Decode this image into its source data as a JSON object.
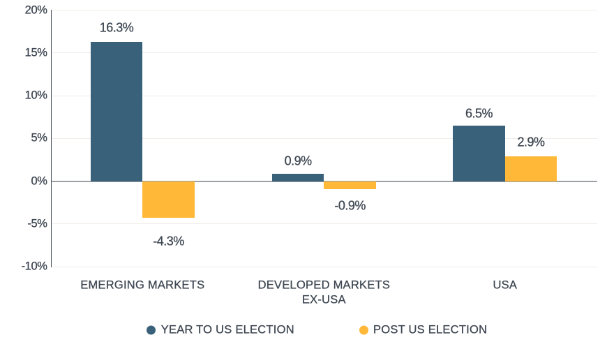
{
  "chart_data": {
    "type": "bar",
    "title": "",
    "categories": [
      "EMERGING MARKETS",
      "DEVELOPED MARKETS\nEX-USA",
      "USA"
    ],
    "series": [
      {
        "name": "YEAR TO US ELECTION",
        "color": "#3a617a",
        "values": [
          16.3,
          0.9,
          6.5
        ],
        "data_labels": [
          "16.3%",
          "0.9%",
          "6.5%"
        ]
      },
      {
        "name": "POST US ELECTION",
        "color": "#ffb838",
        "values": [
          -4.3,
          -0.9,
          2.9
        ],
        "data_labels": [
          "-4.3%",
          "-0.9%",
          "2.9%"
        ]
      }
    ],
    "y_axis": {
      "tick_values": [
        20,
        15,
        10,
        5,
        0,
        -5,
        -10
      ],
      "tick_labels": [
        "20%",
        "15%",
        "10%",
        "5%",
        "0%",
        "-5%",
        "-10%"
      ],
      "ylim": [
        -10,
        20
      ],
      "unit": "%"
    },
    "xlabel": "",
    "ylabel": "",
    "grid": true,
    "legend_position": "bottom",
    "colors": {
      "background": "#ffffff",
      "text": "#3e4752",
      "gridline": "#f1ece7",
      "zero_line": "#9aa0a6",
      "axis_line": "#434b55"
    }
  }
}
